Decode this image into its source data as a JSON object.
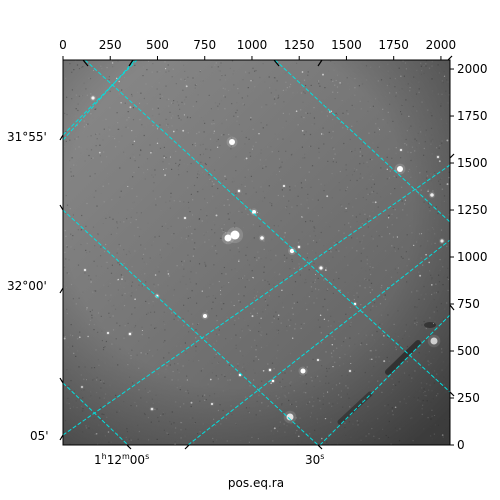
{
  "chart_data": {
    "type": "image",
    "xlabel": "pos.eq.ra",
    "ylabel": "",
    "pixel_x_ticks": [
      0,
      250,
      500,
      750,
      1000,
      1250,
      1500,
      1750,
      2000
    ],
    "pixel_y_ticks": [
      0,
      250,
      500,
      750,
      1000,
      1250,
      1500,
      1750,
      2000
    ],
    "pixel_range": [
      0,
      2048
    ],
    "dec_ticks": [
      "31°55'",
      "32°00'",
      "05'"
    ],
    "ra_ticks": [
      {
        "h": "1",
        "hs": "h",
        "m": "12",
        "ms": "m",
        "s": "00",
        "ss": "s"
      },
      {
        "s": "30",
        "ss": "s"
      }
    ],
    "grid": true,
    "grid_color": "#00e0e0",
    "image_background": "#777777"
  }
}
